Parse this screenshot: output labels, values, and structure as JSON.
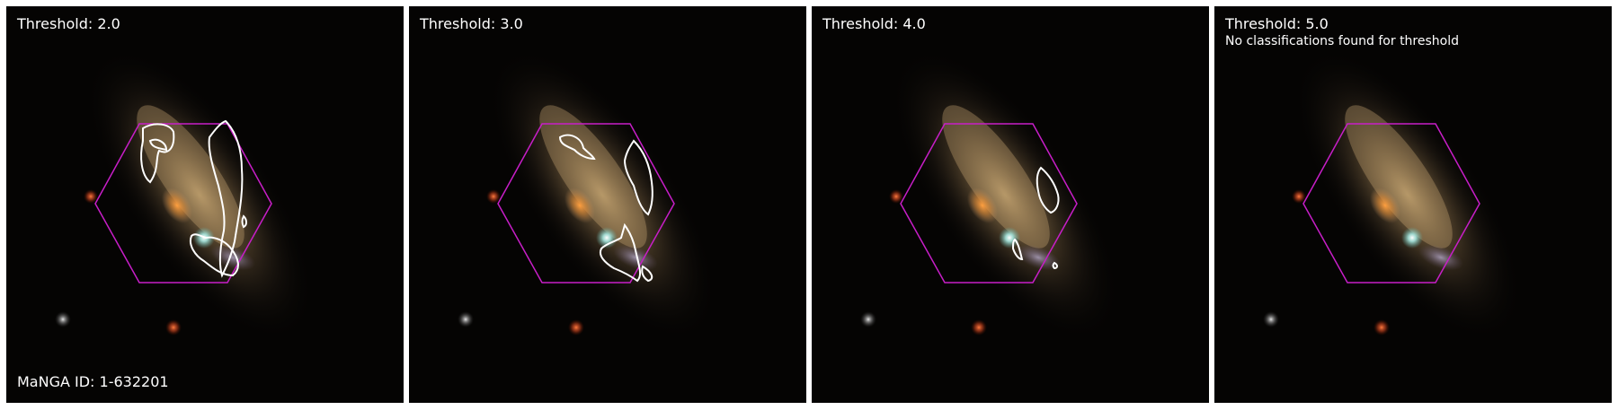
{
  "manga_id_label": "MaNGA ID: 1-632201",
  "overlay_colors": {
    "hexagon": "#c81ec8",
    "contour": "#ffffff"
  },
  "panels": [
    {
      "threshold_label": "Threshold: 2.0",
      "message": ""
    },
    {
      "threshold_label": "Threshold: 3.0",
      "message": ""
    },
    {
      "threshold_label": "Threshold: 4.0",
      "message": ""
    },
    {
      "threshold_label": "Threshold: 5.0",
      "message": "No classifications found for threshold"
    }
  ]
}
